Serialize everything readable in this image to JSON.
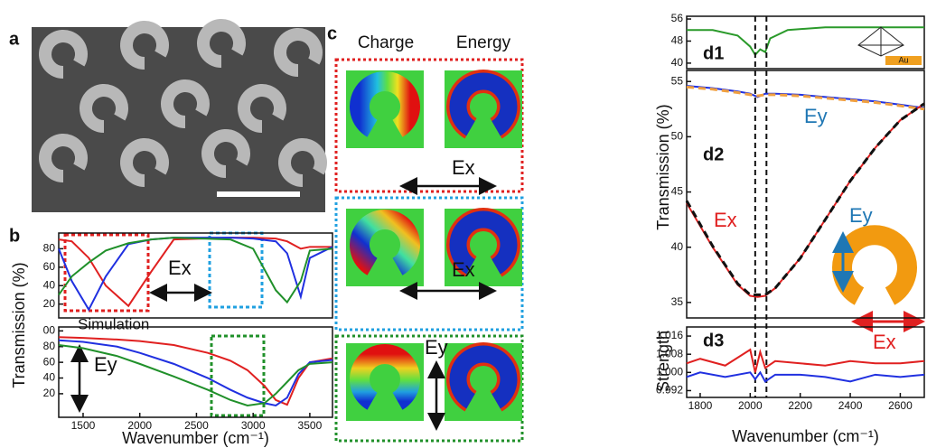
{
  "figure": {
    "panel_a": "a",
    "panel_b": "b",
    "panel_c": "c",
    "c_charge": "Charge",
    "c_energy": "Energy",
    "c_ex1": "Ex",
    "c_ex2": "Ex",
    "c_ey": "Ey",
    "b_ex": "Ex",
    "b_ey": "Ey",
    "b_simulation": "Simulation",
    "d1": "d1",
    "d2": "d2",
    "d3": "d3",
    "d2_ey": "Ey",
    "d2_ex": "Ex",
    "inset_ey": "Ey",
    "inset_ex": "Ex",
    "inset_au": "Au"
  },
  "chart_data": [
    {
      "type": "line",
      "y_label": "Transmission (%)",
      "xlim": [
        1285,
        3700
      ],
      "ylim": [
        5,
        97
      ],
      "yticks": [
        20,
        40,
        60,
        80
      ],
      "x": [
        1285,
        1400,
        1550,
        1700,
        1900,
        2100,
        2300,
        2800,
        3000,
        3200,
        3300,
        3420,
        3500,
        3700
      ],
      "series": [
        {
          "color": "#e02020",
          "values": [
            90,
            88,
            70,
            40,
            18,
            55,
            90,
            92,
            92,
            91,
            88,
            80,
            82,
            82
          ]
        },
        {
          "color": "#2030e0",
          "values": [
            80,
            45,
            14,
            50,
            85,
            90,
            92,
            92,
            91,
            88,
            75,
            28,
            70,
            82
          ]
        },
        {
          "color": "#20902a",
          "values": [
            30,
            50,
            65,
            78,
            86,
            90,
            92,
            90,
            80,
            35,
            22,
            45,
            78,
            80
          ]
        }
      ]
    },
    {
      "type": "line",
      "x_label": "Wavenumber (cm⁻¹)",
      "xlim": [
        1285,
        3700
      ],
      "ylim": [
        -10,
        105
      ],
      "yticks": [
        20,
        40,
        60,
        80,
        {
          "value": 100,
          "label": "00"
        }
      ],
      "xticks": [
        1500,
        2000,
        2500,
        3000,
        3500
      ],
      "x": [
        1285,
        1500,
        1800,
        2000,
        2300,
        2600,
        2800,
        2950,
        3100,
        3200,
        3300,
        3400,
        3500,
        3700
      ],
      "series": [
        {
          "color": "#e02020",
          "values": [
            92,
            91,
            89,
            87,
            82,
            72,
            62,
            50,
            30,
            12,
            6,
            40,
            60,
            65
          ]
        },
        {
          "color": "#2030e0",
          "values": [
            88,
            86,
            80,
            72,
            58,
            40,
            25,
            15,
            8,
            5,
            15,
            45,
            60,
            63
          ]
        },
        {
          "color": "#20902a",
          "values": [
            82,
            78,
            68,
            58,
            42,
            25,
            12,
            5,
            8,
            20,
            35,
            50,
            58,
            60
          ]
        }
      ]
    },
    {
      "type": "line",
      "xlim": [
        1746,
        2696
      ],
      "ylim": [
        38,
        57
      ],
      "yticks": [
        40,
        48,
        56
      ],
      "x": [
        1746,
        1850,
        1950,
        2000,
        2020,
        2040,
        2060,
        2080,
        2150,
        2300,
        2500,
        2696
      ],
      "series": [
        {
          "color": "#2a9a2a",
          "values": [
            52,
            52,
            50,
            46,
            43,
            45,
            44,
            49,
            52,
            53,
            53,
            53
          ]
        }
      ]
    },
    {
      "type": "line",
      "y_label": "Transmission (%)",
      "xlim": [
        1746,
        2696
      ],
      "ylim": [
        33.6,
        56
      ],
      "yticks": [
        35,
        40,
        45,
        50,
        55
      ],
      "markers": [
        2020,
        2065
      ],
      "x": [
        1746,
        1850,
        1950,
        2000,
        2030,
        2060,
        2100,
        2200,
        2300,
        2400,
        2500,
        2600,
        2696
      ],
      "series": [
        {
          "color": "#2030e0",
          "values": [
            54.6,
            54.4,
            54.1,
            53.9,
            53.6,
            53.9,
            53.9,
            53.8,
            53.6,
            53.4,
            53.2,
            52.9,
            52.6
          ]
        },
        {
          "color": "#f0a040",
          "dashed": true,
          "values": [
            54.5,
            54.3,
            54.0,
            53.8,
            53.7,
            53.8,
            53.8,
            53.7,
            53.5,
            53.3,
            53.1,
            52.8,
            52.5
          ]
        },
        {
          "color": "#e02020",
          "values": [
            44.0,
            40.0,
            36.6,
            35.6,
            35.5,
            35.6,
            36.3,
            39.0,
            42.5,
            46,
            49,
            51.5,
            53
          ]
        },
        {
          "color": "#111111",
          "dashed": true,
          "values": [
            44.2,
            40.1,
            36.7,
            35.7,
            35.7,
            35.7,
            36.3,
            39.0,
            42.5,
            46,
            49,
            51.5,
            53
          ]
        }
      ]
    },
    {
      "type": "line",
      "y_label": "Strength",
      "x_label": "Wavenumber (cm⁻¹)",
      "xlim": [
        1746,
        2696
      ],
      "ylim": [
        0.989,
        1.02
      ],
      "yticks": [
        0.992,
        {
          "value": 1,
          "label": "1.000"
        },
        1.008,
        1.016
      ],
      "xticks": [
        1800,
        2000,
        2200,
        2400,
        2600
      ],
      "x": [
        1746,
        1800,
        1900,
        2000,
        2020,
        2040,
        2060,
        2100,
        2200,
        2300,
        2400,
        2500,
        2600,
        2696
      ],
      "series": [
        {
          "color": "#e02020",
          "values": [
            1.004,
            1.006,
            1.003,
            1.01,
            1.0,
            1.009,
            1.002,
            1.005,
            1.004,
            1.003,
            1.005,
            1.004,
            1.004,
            1.005
          ]
        },
        {
          "color": "#2030e0",
          "values": [
            0.998,
            1.0,
            0.998,
            1.0,
            0.997,
            1.0,
            0.996,
            0.999,
            0.999,
            0.998,
            0.996,
            0.999,
            0.998,
            0.999
          ]
        }
      ]
    }
  ]
}
